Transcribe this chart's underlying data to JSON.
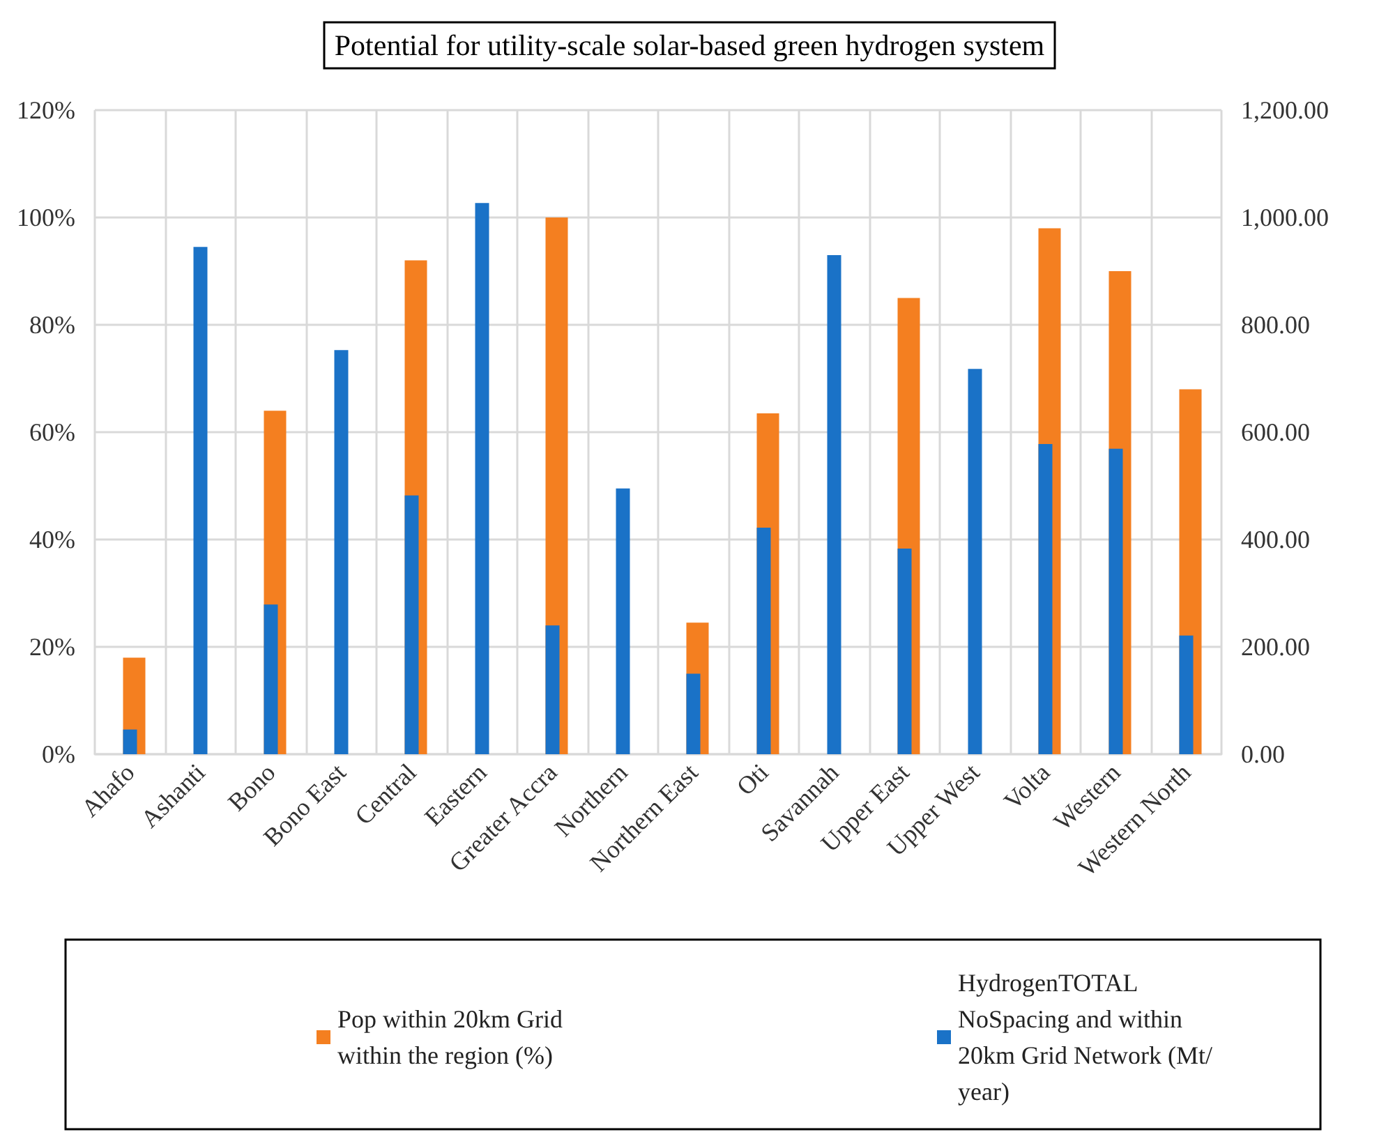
{
  "chart_data": {
    "type": "bar",
    "title": "Potential for utility-scale solar-based green hydrogen system",
    "categories": [
      "Ahafo",
      "Ashanti",
      "Bono",
      "Bono East",
      "Central",
      "Eastern",
      "Greater Accra",
      "Northern",
      "Northern East",
      "Oti",
      "Savannah",
      "Upper East",
      "Upper West",
      "Volta",
      "Western",
      "Western North"
    ],
    "series": [
      {
        "name": "Pop within 20km Grid within the region (%)",
        "color": "#f47f20",
        "values": [
          18,
          null,
          64,
          null,
          92,
          null,
          100,
          null,
          24.5,
          63.5,
          null,
          85,
          null,
          98,
          90,
          68
        ]
      },
      {
        "name": "HydrogenTOTAL NoSpacing and within 20km Grid Network (Mt/year)",
        "color": "#1a72c7",
        "axis": "y2",
        "values": [
          46,
          945,
          279,
          753,
          482,
          1027,
          240,
          495,
          150,
          422,
          930,
          383,
          718,
          578,
          569,
          221
        ]
      }
    ],
    "ylim": [
      0,
      120
    ],
    "yticks": [
      {
        "value": 0,
        "label": "0%"
      },
      {
        "value": 20,
        "label": "20%"
      },
      {
        "value": 40,
        "label": "40%"
      },
      {
        "value": 60,
        "label": "60%"
      },
      {
        "value": 80,
        "label": "80%"
      },
      {
        "value": 100,
        "label": "100%"
      },
      {
        "value": 120,
        "label": "120%"
      }
    ],
    "y2lim": [
      0,
      1200
    ],
    "y2ticks": [
      {
        "value": 0,
        "label": "0.00"
      },
      {
        "value": 200,
        "label": "200.00"
      },
      {
        "value": 400,
        "label": "400.00"
      },
      {
        "value": 600,
        "label": "600.00"
      },
      {
        "value": 800,
        "label": "800.00"
      },
      {
        "value": 1000,
        "label": "1,000.00"
      },
      {
        "value": 1200,
        "label": "1,200.00"
      }
    ],
    "grid": true,
    "legend": "bottom"
  }
}
